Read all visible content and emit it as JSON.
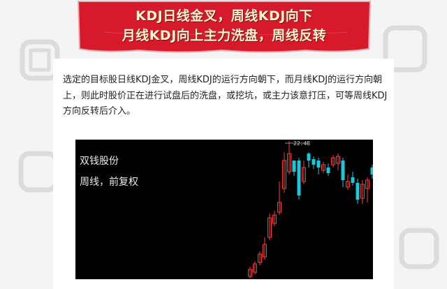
{
  "banner": {
    "line1": "KDJ日线金叉，周线KDJ向下",
    "line2": "月线KDJ向上主力洗盘，周线反转"
  },
  "description": "选定的目标股日线KDJ金叉，周线KDJ的运行方向朝下，而月线KDJ的运行方向朝上，则此时股价正在进行试盘后的洗盘，或挖坑，或主力该意打压，可等周线KDJ方向反转后介入。",
  "chart": {
    "stock_name": "双钱股份",
    "period_label": "周线，前复权",
    "peak_label": "22.48"
  },
  "colors": {
    "banner_red": "#d61a2b",
    "text_cream": "#fdf5d0",
    "candle_up": "#ff3b3b",
    "candle_down": "#19c8dc",
    "chart_bg": "#000000"
  }
}
